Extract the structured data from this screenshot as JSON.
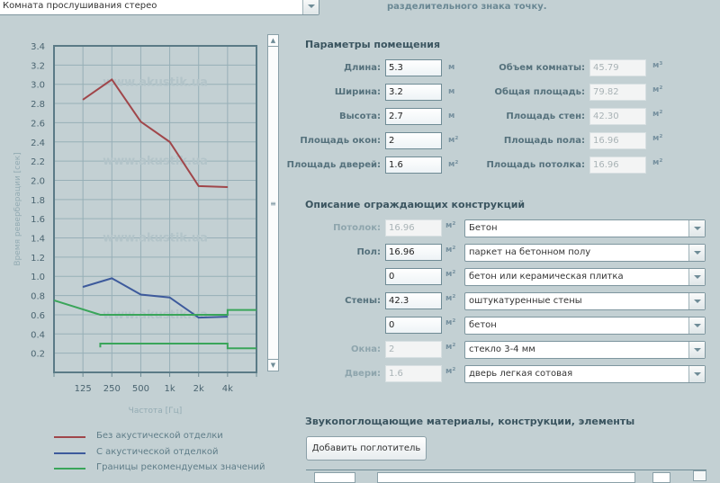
{
  "room_type_select": {
    "value": "Комната прослушивания стерео"
  },
  "hint_text": "разделительного знака точку.",
  "room_params": {
    "title": "Параметры помещения",
    "inputs": [
      {
        "label": "Длина:",
        "value": "5.3",
        "unit": "м"
      },
      {
        "label": "Ширина:",
        "value": "3.2",
        "unit": "м"
      },
      {
        "label": "Высота:",
        "value": "2.7",
        "unit": "м"
      },
      {
        "label": "Площадь окон:",
        "value": "2",
        "unit": "м²"
      },
      {
        "label": "Площадь дверей:",
        "value": "1.6",
        "unit": "м²"
      }
    ],
    "computed": [
      {
        "label": "Объем комнаты:",
        "value": "45.79",
        "unit": "м³"
      },
      {
        "label": "Общая площадь:",
        "value": "79.82",
        "unit": "м²"
      },
      {
        "label": "Площадь стен:",
        "value": "42.30",
        "unit": "м²"
      },
      {
        "label": "Площадь пола:",
        "value": "16.96",
        "unit": "м²"
      },
      {
        "label": "Площадь потолка:",
        "value": "16.96",
        "unit": "м²"
      }
    ]
  },
  "constructions": {
    "title": "Описание ограждающих конструкций",
    "rows": [
      {
        "label": "Потолок:",
        "value": "16.96",
        "unit": "м²",
        "material": "Бетон",
        "disabled": true
      },
      {
        "label": "Пол:",
        "value": "16.96",
        "unit": "м²",
        "material": "паркет на бетонном полу",
        "disabled": false
      },
      {
        "label": "",
        "value": "0",
        "unit": "м²",
        "material": "бетон или керамическая плитка",
        "disabled": false
      },
      {
        "label": "Стены:",
        "value": "42.3",
        "unit": "м²",
        "material": "оштукатуренные стены",
        "disabled": false
      },
      {
        "label": "",
        "value": "0",
        "unit": "м²",
        "material": "бетон",
        "disabled": false
      },
      {
        "label": "Окна:",
        "value": "2",
        "unit": "м²",
        "material": "стекло 3-4 мм",
        "disabled": true
      },
      {
        "label": "Двери:",
        "value": "1.6",
        "unit": "м²",
        "material": "дверь легкая сотовая",
        "disabled": true
      }
    ]
  },
  "absorbers": {
    "title": "Звукопоглощающие материалы, конструкции, элементы",
    "add_button": "Добавить поглотитель"
  },
  "chart_data": {
    "type": "line",
    "xlabel": "Частота [Гц]",
    "ylabel": "Время реверберации [сек]",
    "categories": [
      "125",
      "250",
      "500",
      "1k",
      "2k",
      "4k"
    ],
    "yticks": [
      "0.2",
      "0.4",
      "0.6",
      "0.8",
      "1.0",
      "1.2",
      "1.4",
      "1.6",
      "1.8",
      "2.0",
      "2.2",
      "2.4",
      "2.6",
      "2.8",
      "3.0",
      "3.2",
      "3.4"
    ],
    "ylim": [
      0,
      3.4
    ],
    "grid": true,
    "watermark": "www.akustik.ua",
    "legend_placement": "bottom",
    "series": [
      {
        "name": "Без акустической отделки",
        "color": "#a0464a",
        "values": [
          2.84,
          3.05,
          2.61,
          2.4,
          1.94,
          1.93
        ]
      },
      {
        "name": "С акустической отделкой",
        "color": "#3d5a9c",
        "values": [
          0.89,
          0.98,
          0.81,
          0.78,
          0.57,
          0.58
        ]
      },
      {
        "name": "Границы рекомендуемых значений",
        "color": "#3aa55a",
        "upper_bound": [
          [
            0,
            0.75
          ],
          [
            1.6,
            0.6
          ],
          [
            6,
            0.6
          ],
          [
            6,
            0.65
          ],
          [
            7,
            0.65
          ]
        ],
        "lower_bound": [
          [
            1.6,
            0.26
          ],
          [
            1.6,
            0.3
          ],
          [
            6,
            0.3
          ],
          [
            6,
            0.25
          ],
          [
            7,
            0.25
          ]
        ]
      }
    ]
  }
}
